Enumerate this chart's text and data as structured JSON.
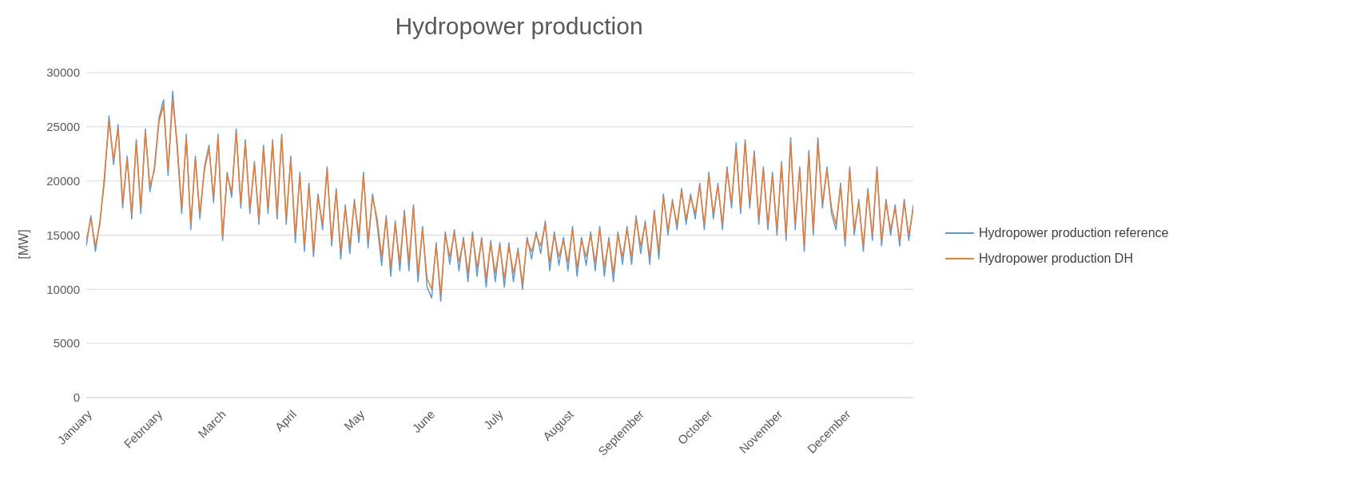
{
  "chart_data": {
    "type": "line",
    "title": "Hydropower production",
    "ylabel": "[MW]",
    "x": [
      "--01-01",
      "--01-03",
      "--01-05",
      "--01-07",
      "--01-09",
      "--01-11",
      "--01-13",
      "--01-15",
      "--01-17",
      "--01-19",
      "--01-21",
      "--01-23",
      "--01-25",
      "--01-27",
      "--01-29",
      "--01-31",
      "--02-02",
      "--02-04",
      "--02-06",
      "--02-08",
      "--02-10",
      "--02-12",
      "--02-14",
      "--02-16",
      "--02-18",
      "--02-20",
      "--02-22",
      "--02-24",
      "--02-26",
      "--02-28",
      "--03-02",
      "--03-04",
      "--03-06",
      "--03-08",
      "--03-10",
      "--03-12",
      "--03-14",
      "--03-16",
      "--03-18",
      "--03-20",
      "--03-22",
      "--03-24",
      "--03-26",
      "--03-28",
      "--03-30",
      "--04-01",
      "--04-03",
      "--04-05",
      "--04-07",
      "--04-09",
      "--04-11",
      "--04-13",
      "--04-15",
      "--04-17",
      "--04-19",
      "--04-21",
      "--04-23",
      "--04-25",
      "--04-27",
      "--04-29",
      "--05-01",
      "--05-03",
      "--05-05",
      "--05-07",
      "--05-09",
      "--05-11",
      "--05-13",
      "--05-15",
      "--05-17",
      "--05-19",
      "--05-21",
      "--05-23",
      "--05-25",
      "--05-27",
      "--05-29",
      "--05-31",
      "--06-02",
      "--06-04",
      "--06-06",
      "--06-08",
      "--06-10",
      "--06-12",
      "--06-14",
      "--06-16",
      "--06-18",
      "--06-20",
      "--06-22",
      "--06-24",
      "--06-26",
      "--06-28",
      "--06-30",
      "--07-02",
      "--07-04",
      "--07-06",
      "--07-08",
      "--07-10",
      "--07-12",
      "--07-14",
      "--07-16",
      "--07-18",
      "--07-20",
      "--07-22",
      "--07-24",
      "--07-26",
      "--07-28",
      "--07-30",
      "--08-01",
      "--08-03",
      "--08-05",
      "--08-07",
      "--08-09",
      "--08-11",
      "--08-13",
      "--08-15",
      "--08-17",
      "--08-19",
      "--08-21",
      "--08-23",
      "--08-25",
      "--08-27",
      "--08-29",
      "--08-31",
      "--09-02",
      "--09-04",
      "--09-06",
      "--09-08",
      "--09-10",
      "--09-12",
      "--09-14",
      "--09-16",
      "--09-18",
      "--09-20",
      "--09-22",
      "--09-24",
      "--09-26",
      "--09-28",
      "--09-30",
      "--10-02",
      "--10-04",
      "--10-06",
      "--10-08",
      "--10-10",
      "--10-12",
      "--10-14",
      "--10-16",
      "--10-18",
      "--10-20",
      "--10-22",
      "--10-24",
      "--10-26",
      "--10-28",
      "--10-30",
      "--11-01",
      "--11-03",
      "--11-05",
      "--11-07",
      "--11-09",
      "--11-11",
      "--11-13",
      "--11-15",
      "--11-17",
      "--11-19",
      "--11-21",
      "--11-23",
      "--11-25",
      "--11-27",
      "--11-29",
      "--12-01",
      "--12-03",
      "--12-05",
      "--12-07",
      "--12-09",
      "--12-11",
      "--12-13",
      "--12-15",
      "--12-17",
      "--12-19",
      "--12-21",
      "--12-23",
      "--12-25",
      "--12-27",
      "--12-29",
      "--12-31"
    ],
    "series": [
      {
        "name": "Hydropower production reference",
        "color": "#5b9bd5",
        "values": [
          14000,
          16800,
          13500,
          16300,
          20000,
          26000,
          21500,
          25200,
          17500,
          22300,
          16500,
          23800,
          17000,
          24800,
          19000,
          21300,
          25800,
          27500,
          20500,
          28300,
          23000,
          17000,
          24300,
          15500,
          22300,
          16500,
          21300,
          23300,
          18000,
          24300,
          14500,
          20800,
          18500,
          24800,
          17500,
          23800,
          17000,
          21800,
          16000,
          23300,
          17000,
          23800,
          16500,
          24300,
          16000,
          22300,
          14300,
          20800,
          13500,
          19800,
          13000,
          18800,
          15500,
          21300,
          14000,
          19300,
          12800,
          17800,
          13300,
          18300,
          14300,
          20800,
          13800,
          18800,
          16000,
          12200,
          16800,
          11200,
          16300,
          11700,
          17300,
          11700,
          17800,
          10700,
          15800,
          10200,
          9200,
          14300,
          8900,
          15300,
          12300,
          15500,
          11700,
          14800,
          10700,
          15300,
          11200,
          14800,
          10200,
          14500,
          10700,
          14300,
          10200,
          14300,
          10700,
          13800,
          10000,
          14800,
          12800,
          15300,
          13300,
          16300,
          11700,
          15300,
          12200,
          14800,
          11700,
          15800,
          11200,
          14800,
          12200,
          15300,
          11700,
          15800,
          11200,
          14800,
          10700,
          15300,
          12300,
          15800,
          12300,
          16800,
          13300,
          16300,
          12300,
          17300,
          12800,
          18800,
          15000,
          18300,
          15500,
          19300,
          16000,
          18800,
          16500,
          19800,
          15500,
          20800,
          16500,
          19800,
          15500,
          21300,
          17500,
          23500,
          17000,
          23800,
          17500,
          22800,
          16000,
          21300,
          15500,
          20800,
          15000,
          21800,
          14500,
          24000,
          15500,
          21300,
          13500,
          22800,
          15000,
          24000,
          17500,
          21300,
          17000,
          15500,
          19800,
          14000,
          21300,
          15000,
          18300,
          13500,
          19300,
          14500,
          21300,
          14000,
          18300,
          15000,
          17800,
          14000,
          18300,
          14500,
          17800
        ]
      },
      {
        "name": "Hydropower production DH",
        "color": "#ed7d31",
        "values": [
          14500,
          16500,
          14000,
          16000,
          20500,
          25500,
          22000,
          24800,
          18000,
          22000,
          17000,
          23500,
          17500,
          24500,
          19500,
          21000,
          25500,
          27000,
          21000,
          27500,
          23500,
          17500,
          24000,
          16000,
          22000,
          17000,
          21000,
          23000,
          18500,
          24000,
          14800,
          20500,
          19000,
          24500,
          18000,
          23500,
          17500,
          21500,
          16500,
          23000,
          17500,
          23500,
          17000,
          24000,
          16500,
          22000,
          15000,
          20500,
          14000,
          19500,
          13500,
          18500,
          16000,
          21000,
          14500,
          19000,
          13500,
          17500,
          14000,
          18000,
          15000,
          20500,
          14500,
          18500,
          16500,
          13000,
          16500,
          12000,
          16000,
          12500,
          17000,
          12500,
          17500,
          11500,
          15500,
          11000,
          10000,
          14000,
          9500,
          15000,
          13000,
          15200,
          12500,
          14500,
          11500,
          15000,
          12000,
          14500,
          11000,
          14200,
          11500,
          14000,
          11000,
          14000,
          11500,
          13500,
          10500,
          14500,
          13500,
          15000,
          14000,
          16000,
          12500,
          15000,
          13000,
          14500,
          12500,
          15500,
          12000,
          14500,
          13000,
          15000,
          12500,
          15500,
          12000,
          14500,
          11500,
          15000,
          13000,
          15500,
          13000,
          16500,
          14000,
          16000,
          13000,
          17000,
          13500,
          18500,
          15500,
          18000,
          16000,
          19000,
          16500,
          18500,
          17000,
          19500,
          16000,
          20500,
          17000,
          19500,
          16000,
          21000,
          18000,
          23000,
          17500,
          23500,
          18000,
          22500,
          16500,
          21000,
          16000,
          20500,
          15500,
          21500,
          15000,
          23500,
          16000,
          21000,
          14000,
          22500,
          15500,
          23500,
          18000,
          21000,
          17500,
          16000,
          19500,
          14500,
          21000,
          15500,
          18000,
          14000,
          19000,
          15000,
          21000,
          14500,
          18000,
          15500,
          17500,
          14500,
          18000,
          15000,
          17500
        ]
      }
    ],
    "xlim": [
      "--01-01",
      "--12-31"
    ],
    "xticks": [
      {
        "value": "--01-01",
        "label": "January"
      },
      {
        "value": "--02-01",
        "label": "February"
      },
      {
        "value": "--03-01",
        "label": "March"
      },
      {
        "value": "--04-01",
        "label": "April"
      },
      {
        "value": "--05-01",
        "label": "May"
      },
      {
        "value": "--06-01",
        "label": "June"
      },
      {
        "value": "--07-01",
        "label": "July"
      },
      {
        "value": "--08-01",
        "label": "August"
      },
      {
        "value": "--09-01",
        "label": "September"
      },
      {
        "value": "--10-01",
        "label": "October"
      },
      {
        "value": "--11-01",
        "label": "November"
      },
      {
        "value": "--12-01",
        "label": "December"
      }
    ],
    "ylim": [
      0,
      30000
    ],
    "yticks": [
      0,
      5000,
      10000,
      15000,
      20000,
      25000,
      30000
    ],
    "grid": "y",
    "legend": "right",
    "marker": "none",
    "line_style": "solid"
  }
}
